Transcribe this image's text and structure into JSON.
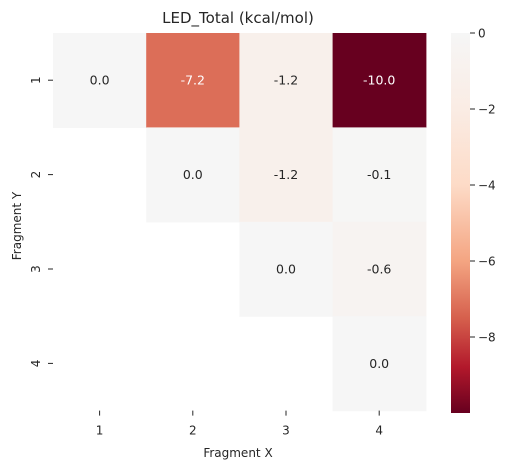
{
  "chart_data": {
    "type": "heatmap",
    "title": "LED_Total (kcal/mol)",
    "xlabel": "Fragment X",
    "ylabel": "Fragment Y",
    "x_categories": [
      "1",
      "2",
      "3",
      "4"
    ],
    "y_categories": [
      "1",
      "2",
      "3",
      "4"
    ],
    "cells": [
      {
        "x": "1",
        "y": "1",
        "value": 0.0,
        "label": "0.0"
      },
      {
        "x": "2",
        "y": "1",
        "value": -7.2,
        "label": "-7.2"
      },
      {
        "x": "3",
        "y": "1",
        "value": -1.2,
        "label": "-1.2"
      },
      {
        "x": "4",
        "y": "1",
        "value": -10.0,
        "label": "-10.0"
      },
      {
        "x": "2",
        "y": "2",
        "value": 0.0,
        "label": "0.0"
      },
      {
        "x": "3",
        "y": "2",
        "value": -1.2,
        "label": "-1.2"
      },
      {
        "x": "4",
        "y": "2",
        "value": -0.1,
        "label": "-0.1"
      },
      {
        "x": "3",
        "y": "3",
        "value": 0.0,
        "label": "0.0"
      },
      {
        "x": "4",
        "y": "3",
        "value": -0.6,
        "label": "-0.6"
      },
      {
        "x": "4",
        "y": "4",
        "value": 0.0,
        "label": "0.0"
      }
    ],
    "colorbar": {
      "min": -10.0,
      "max": 0.0,
      "ticks": [
        0,
        -2,
        -4,
        -6,
        -8
      ],
      "tick_labels": [
        "0",
        "−2",
        "−4",
        "−6",
        "−8"
      ],
      "colormap": "RdBu"
    },
    "grid": false
  }
}
